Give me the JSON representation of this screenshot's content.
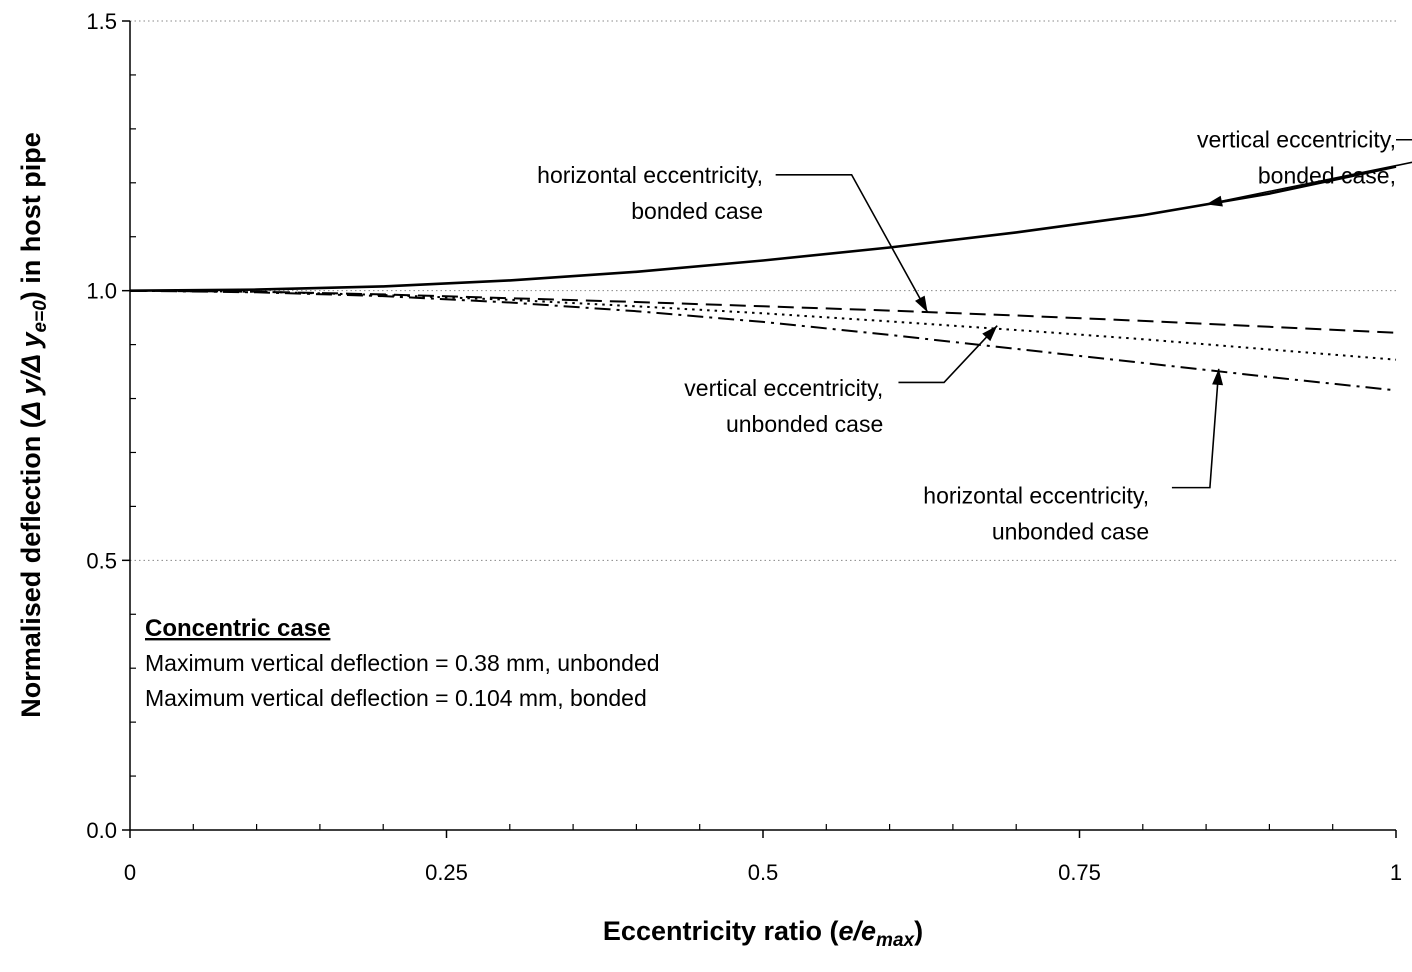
{
  "chart_data": {
    "type": "line",
    "xlabel": "Eccentricity ratio (e/e max )",
    "xlabel_parts": {
      "prefix": "Eccentricity ratio (",
      "var": "e/e",
      "sub": "max",
      "suffix": ")"
    },
    "ylabel": "Normalised deflection (Δy/Δy e=0) in host pipe",
    "ylabel_parts": {
      "prefix": "Normalised deflection (",
      "var": "Δ y/Δ y",
      "sub": "e=0",
      "suffix": ") in host pipe"
    },
    "xlim": [
      0,
      1
    ],
    "ylim": [
      0,
      1.5
    ],
    "x_ticks": [
      {
        "value": 0,
        "label": "0"
      },
      {
        "value": 0.25,
        "label": "0.25"
      },
      {
        "value": 0.5,
        "label": "0.5"
      },
      {
        "value": 0.75,
        "label": "0.75"
      },
      {
        "value": 1,
        "label": "1"
      }
    ],
    "y_ticks": [
      {
        "value": 0,
        "label": "0.0"
      },
      {
        "value": 0.5,
        "label": "0.5"
      },
      {
        "value": 1,
        "label": "1.0"
      },
      {
        "value": 1.5,
        "label": "1.5"
      }
    ],
    "grid": {
      "y_major": true,
      "x_major": false,
      "style": "dotted"
    },
    "series": [
      {
        "key": "vb",
        "style": "solid",
        "x": [
          0,
          0.1,
          0.2,
          0.3,
          0.4,
          0.5,
          0.6,
          0.7,
          0.8,
          0.9,
          1.0
        ],
        "y": [
          1.0,
          1.002,
          1.008,
          1.019,
          1.035,
          1.056,
          1.08,
          1.108,
          1.14,
          1.18,
          1.23
        ]
      },
      {
        "key": "hb",
        "style": "dashed",
        "x": [
          0,
          0.1,
          0.2,
          0.3,
          0.4,
          0.5,
          0.6,
          0.7,
          0.8,
          0.9,
          1.0
        ],
        "y": [
          1.0,
          0.998,
          0.993,
          0.986,
          0.979,
          0.971,
          0.963,
          0.954,
          0.944,
          0.933,
          0.922
        ]
      },
      {
        "key": "vu",
        "style": "dotted",
        "x": [
          0,
          0.1,
          0.2,
          0.3,
          0.4,
          0.5,
          0.6,
          0.7,
          0.8,
          0.9,
          1.0
        ],
        "y": [
          1.0,
          0.998,
          0.992,
          0.983,
          0.971,
          0.958,
          0.943,
          0.927,
          0.91,
          0.891,
          0.872
        ]
      },
      {
        "key": "hu",
        "style": "dash-dot",
        "x": [
          0,
          0.1,
          0.2,
          0.3,
          0.4,
          0.5,
          0.6,
          0.7,
          0.8,
          0.9,
          1.0
        ],
        "y": [
          1.0,
          0.997,
          0.99,
          0.978,
          0.962,
          0.942,
          0.918,
          0.892,
          0.866,
          0.84,
          0.815
        ]
      }
    ],
    "annotations": [
      {
        "series": "vb",
        "lines": [
          "vertical eccentricity,",
          "bonded case,"
        ],
        "align": "end",
        "text_x": 1.0,
        "text_y": 1.265,
        "leader": [
          [
            1.0,
            1.265
          ],
          [
            1.1,
            1.265
          ]
        ],
        "point_x": 0.85,
        "point_y": 1.16
      },
      {
        "series": "hb",
        "lines": [
          "horizontal eccentricity,",
          "bonded case"
        ],
        "align": "end",
        "text_x": 0.5,
        "text_y": 1.2,
        "leader": [
          [
            0.51,
            1.2
          ],
          [
            0.57,
            1.2
          ]
        ],
        "point_x": 0.63,
        "point_y": 0.96
      },
      {
        "series": "vu",
        "lines": [
          "vertical eccentricity,",
          "unbonded case"
        ],
        "align": "end",
        "text_x": 0.595,
        "text_y": 0.805,
        "leader": [
          [
            0.607,
            0.815
          ],
          [
            0.643,
            0.815
          ]
        ],
        "point_x": 0.685,
        "point_y": 0.935
      },
      {
        "series": "hu",
        "lines": [
          "horizontal eccentricity,",
          "unbonded case"
        ],
        "align": "end",
        "text_x": 0.805,
        "text_y": 0.605,
        "leader": [
          [
            0.823,
            0.62
          ],
          [
            0.853,
            0.62
          ]
        ],
        "point_x": 0.86,
        "point_y": 0.855
      }
    ],
    "note": {
      "heading": "Concentric case",
      "lines": [
        "Maximum vertical deflection = 0.38 mm, unbonded",
        "Maximum vertical deflection = 0.104 mm, bonded"
      ]
    }
  }
}
